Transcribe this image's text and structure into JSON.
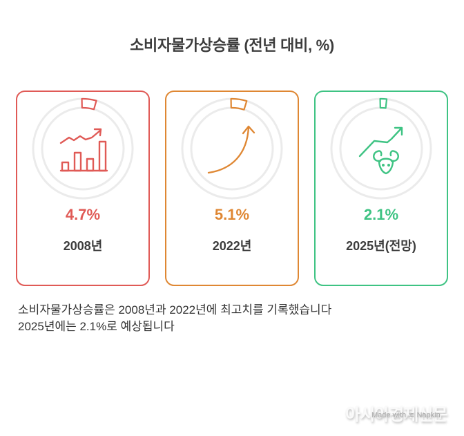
{
  "title": "소비자물가상승률 (전년 대비, %)",
  "cards": [
    {
      "value": "4.7%",
      "label": "2008년",
      "color": "#e05a56",
      "icon": "bar-chart-growth-icon",
      "percent": 4.7
    },
    {
      "value": "5.1%",
      "label": "2022년",
      "color": "#df8733",
      "icon": "curved-arrow-up-icon",
      "percent": 5.1
    },
    {
      "value": "2.1%",
      "label": "2025년(전망)",
      "color": "#3ec383",
      "icon": "bull-market-icon",
      "percent": 2.1
    }
  ],
  "summary": {
    "line1": "소비자물가상승률은 2008년과 2022년에 최고치를 기록했습니다",
    "line2": "2025년에는 2.1%로 예상됩니다"
  },
  "watermark": {
    "publisher": "아시아경제신문",
    "made_with": "Made with ≋ Napkin"
  },
  "colors": {
    "ring": "#ebebeb",
    "text": "#3c3c3c"
  }
}
